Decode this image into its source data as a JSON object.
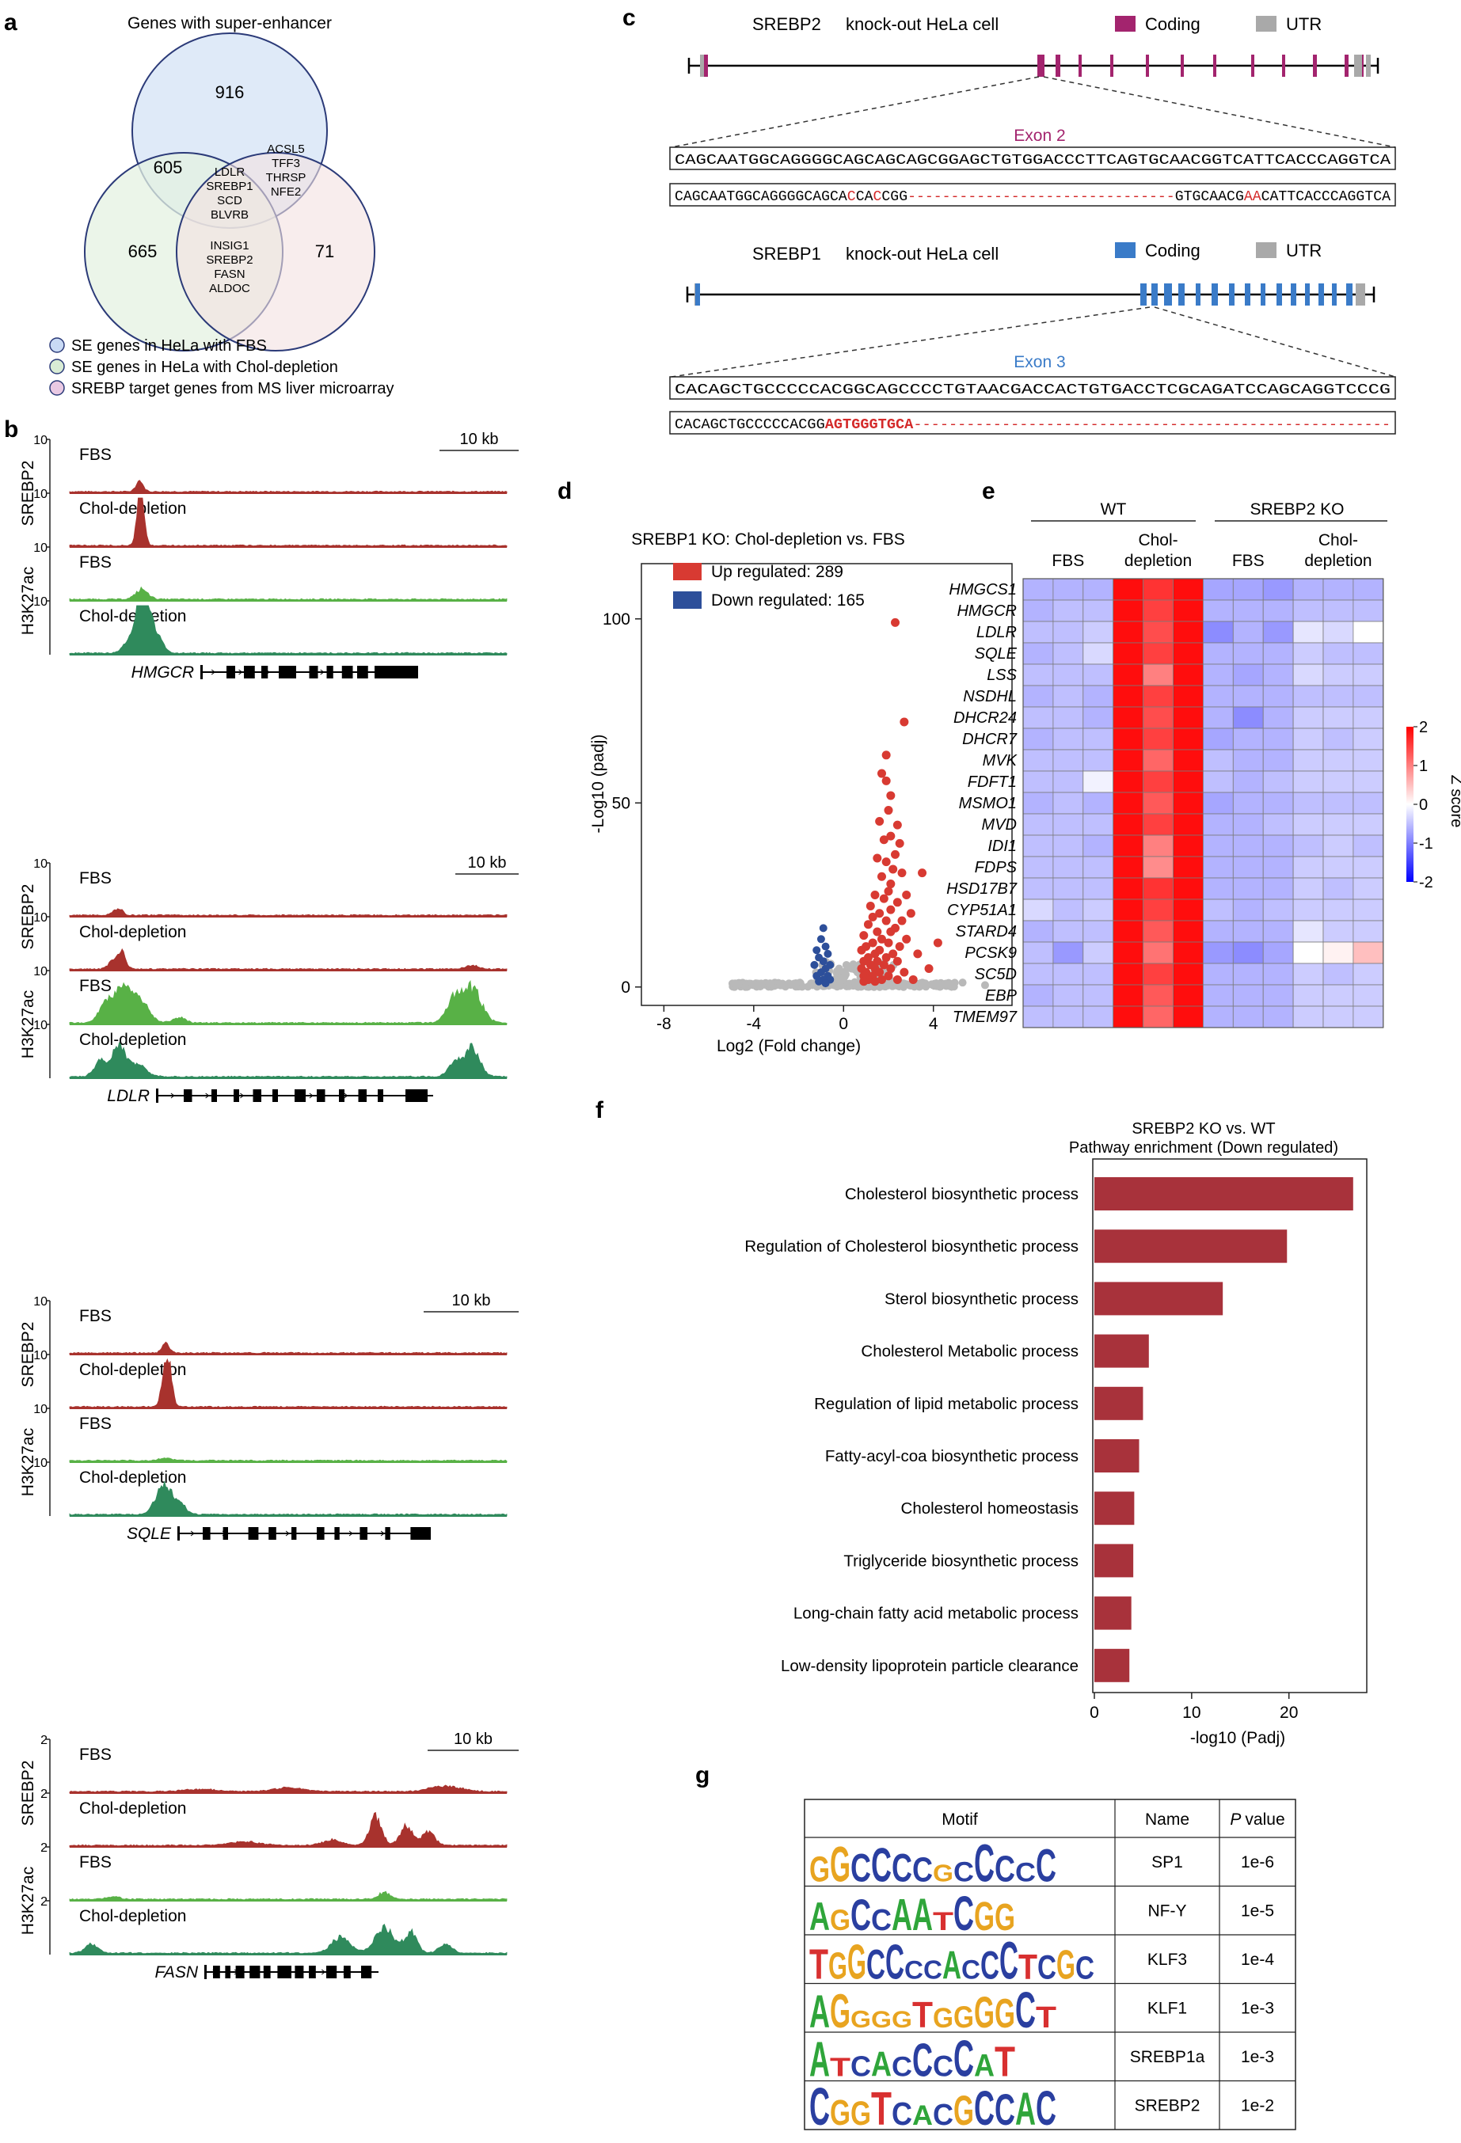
{
  "panel_labels": {
    "a": "a",
    "b": "b",
    "c": "c",
    "d": "d",
    "e": "e",
    "f": "f",
    "g": "g"
  },
  "panel_a": {
    "title": "Genes with super-enhancer",
    "counts": {
      "top": "916",
      "left": "665",
      "right": "71",
      "top_left": "605"
    },
    "center_genes": [
      "LDLR",
      "SREBP1",
      "SCD",
      "BLVRB"
    ],
    "top_right_genes": [
      "ACSL5",
      "TFF3",
      "THRSP",
      "NFE2"
    ],
    "bottom_genes": [
      "INSIG1",
      "SREBP2",
      "FASN",
      "ALDOC"
    ],
    "legend": [
      {
        "label": "SE genes in HeLa with FBS",
        "color": "#c9daf5"
      },
      {
        "label": "SE genes in HeLa with Chol-depletion",
        "color": "#d9ecd5"
      },
      {
        "label": "SREBP target genes from MS liver microarray",
        "color": "#e9c9e3"
      }
    ],
    "colors": {
      "top": "#dce8f7",
      "left": "#e4f2e1",
      "right": "#f4e1e1",
      "outline": "#2b3a78"
    }
  },
  "panel_b": {
    "groups": [
      {
        "gene": "HMGCR",
        "scale": "10 kb",
        "ymax": "10",
        "srebp_label": "SREBP2",
        "h3_label": "H3K27ac"
      },
      {
        "gene": "LDLR",
        "scale": "10 kb",
        "ymax": "10",
        "srebp_label": "SREBP2",
        "h3_label": "H3K27ac"
      },
      {
        "gene": "SQLE",
        "scale": "10 kb",
        "ymax": "10",
        "srebp_label": "SREBP2",
        "h3_label": "H3K27ac"
      },
      {
        "gene": "FASN",
        "scale": "10 kb",
        "ymax": "2",
        "srebp_label": "SREBP2",
        "h3_label": "H3K27ac"
      }
    ],
    "track_labels": [
      "FBS",
      "Chol-depletion",
      "FBS",
      "Chol-depletion"
    ],
    "colors": {
      "srebp": "#a8322d",
      "h3_fbs": "#58b146",
      "h3_chol": "#2f8a5c"
    }
  },
  "panel_c": {
    "srebp2": {
      "title": "SREBP2",
      "subtitle": "knock-out  HeLa cell",
      "coding": "Coding",
      "utr": "UTR",
      "exon": "Exon 2",
      "coding_color": "#a3246e",
      "wt_seq": "CAGCAATGGCAGGGGCAGCAGCAGCGGAGCTGTGGACCCTTCAGTGCAACGGTCATTCACCCAGGTCA",
      "ko_prefix": "CAGCAATGGCAGGGGCAGCA",
      "ko_red1": "C",
      "ko_mid1": "CA",
      "ko_red2": "C",
      "ko_mid2": "CGG",
      "ko_gap": "-------------------------------",
      "ko_mid3": "GTGCAACG",
      "ko_red3": "AA",
      "ko_suffix": "CATTCACCCAGGTCA"
    },
    "srebp1": {
      "title": "SREBP1",
      "subtitle": "knock-out  HeLa cell",
      "coding": "Coding",
      "utr": "UTR",
      "exon": "Exon 3",
      "coding_color": "#3a7bc8",
      "wt_seq": "CACAGCTGCCCCCACGGCAGCCCCTGTAACGACCACTGTGACCTCGCAGATCCAGCAGGTCCCG",
      "ko_prefix": "CACAGCTGCCCCCACGG",
      "ko_red": "AGTGGGTGCA",
      "ko_gap": "------------------------------------------------------"
    },
    "utr_color": "#a9a9a9"
  },
  "chart_data": [
    {
      "type": "scatter",
      "panel": "d",
      "title": "SREBP1 KO: Chol-depletion vs. FBS",
      "xlabel": "Log2 (Fold change)",
      "ylabel": "-Log10 (padj)",
      "xlim": [
        -9,
        7.5
      ],
      "ylim": [
        -5,
        115
      ],
      "xticks": [
        "-8",
        "-4",
        "0",
        "4"
      ],
      "yticks": [
        "0",
        "50",
        "100"
      ],
      "legend": [
        {
          "label": "Up regulated: 289",
          "color": "#d83a32"
        },
        {
          "label": "Down regulated: 165",
          "color": "#2d4f9a"
        }
      ],
      "up_points": [
        [
          2.3,
          99
        ],
        [
          2.7,
          72
        ],
        [
          1.9,
          63
        ],
        [
          1.7,
          58
        ],
        [
          1.9,
          56
        ],
        [
          2.1,
          52
        ],
        [
          2.0,
          48
        ],
        [
          1.6,
          45
        ],
        [
          2.4,
          44
        ],
        [
          2.1,
          41
        ],
        [
          1.8,
          40
        ],
        [
          2.5,
          39
        ],
        [
          2.3,
          36
        ],
        [
          1.5,
          35
        ],
        [
          1.9,
          34
        ],
        [
          2.2,
          32
        ],
        [
          2.6,
          31
        ],
        [
          3.5,
          31
        ],
        [
          1.7,
          30
        ],
        [
          2.1,
          28
        ],
        [
          2.0,
          26
        ],
        [
          1.4,
          25
        ],
        [
          2.8,
          25
        ],
        [
          1.8,
          24
        ],
        [
          2.4,
          23
        ],
        [
          1.2,
          22
        ],
        [
          2.1,
          21
        ],
        [
          1.6,
          20
        ],
        [
          3.0,
          20
        ],
        [
          1.3,
          19
        ],
        [
          1.9,
          18
        ],
        [
          2.6,
          18
        ],
        [
          1.1,
          17
        ],
        [
          2.3,
          16
        ],
        [
          1.5,
          15
        ],
        [
          2.1,
          15
        ],
        [
          0.9,
          14
        ],
        [
          1.7,
          13
        ],
        [
          2.8,
          13
        ],
        [
          1.3,
          12
        ],
        [
          2.0,
          12
        ],
        [
          1.0,
          11
        ],
        [
          2.5,
          11
        ],
        [
          1.6,
          10
        ],
        [
          0.8,
          10
        ],
        [
          2.2,
          9
        ],
        [
          1.4,
          9
        ],
        [
          3.3,
          9
        ],
        [
          1.1,
          8
        ],
        [
          1.9,
          8
        ],
        [
          0.9,
          7
        ],
        [
          1.5,
          7
        ],
        [
          2.4,
          7
        ],
        [
          1.2,
          6
        ],
        [
          1.8,
          6
        ],
        [
          0.8,
          5
        ],
        [
          1.4,
          5
        ],
        [
          2.1,
          5
        ],
        [
          3.8,
          5
        ],
        [
          1.0,
          4
        ],
        [
          1.6,
          4
        ],
        [
          2.7,
          4
        ],
        [
          0.9,
          3
        ],
        [
          1.3,
          3
        ],
        [
          2.0,
          3
        ],
        [
          1.1,
          2
        ],
        [
          1.7,
          2
        ],
        [
          2.4,
          2
        ],
        [
          0.9,
          1.5
        ],
        [
          1.4,
          1.5
        ],
        [
          3.1,
          2
        ],
        [
          4.2,
          12
        ]
      ],
      "down_points": [
        [
          -0.9,
          16
        ],
        [
          -1.0,
          13
        ],
        [
          -0.8,
          11
        ],
        [
          -1.2,
          10
        ],
        [
          -0.7,
          9
        ],
        [
          -1.1,
          8
        ],
        [
          -0.9,
          7
        ],
        [
          -0.6,
          6
        ],
        [
          -1.3,
          6
        ],
        [
          -0.8,
          5
        ],
        [
          -1.0,
          4
        ],
        [
          -0.7,
          3
        ],
        [
          -1.2,
          3
        ],
        [
          -0.9,
          2
        ],
        [
          -0.6,
          2
        ],
        [
          -1.1,
          1.5
        ],
        [
          -0.8,
          1
        ]
      ],
      "ns_range": [
        -5,
        5
      ],
      "ns_extra": [
        [
          6.3,
          0.5
        ],
        [
          5.3,
          1.2
        ],
        [
          -3.9,
          0.4
        ]
      ]
    },
    {
      "type": "heatmap",
      "panel": "e",
      "group_labels": [
        "WT",
        "SREBP2 KO"
      ],
      "condition_labels": [
        "FBS",
        "Chol-\ndepletion",
        "FBS",
        "Chol-\ndepletion"
      ],
      "rows": [
        "HMGCS1",
        "HMGCR",
        "LDLR",
        "SQLE",
        "LSS",
        "NSDHL",
        "DHCR24",
        "DHCR7",
        "MVK",
        "FDFT1",
        "MSMO1",
        "MVD",
        "IDI1",
        "FDPS",
        "HSD17B7",
        "CYP51A1",
        "STARD4",
        "PCSK9",
        "SC5D",
        "EBP",
        "TMEM97"
      ],
      "values": [
        [
          -0.6,
          -0.6,
          -0.6,
          1.9,
          1.6,
          1.9,
          -0.7,
          -0.7,
          -0.8,
          -0.6,
          -0.6,
          -0.6
        ],
        [
          -0.6,
          -0.5,
          -0.5,
          1.9,
          1.5,
          1.9,
          -0.6,
          -0.6,
          -0.6,
          -0.5,
          -0.5,
          -0.5
        ],
        [
          -0.5,
          -0.5,
          -0.4,
          1.9,
          1.4,
          1.9,
          -0.9,
          -0.6,
          -0.8,
          -0.2,
          -0.3,
          0.0
        ],
        [
          -0.6,
          -0.5,
          -0.3,
          1.9,
          1.5,
          1.9,
          -0.6,
          -0.6,
          -0.6,
          -0.4,
          -0.5,
          -0.5
        ],
        [
          -0.5,
          -0.5,
          -0.5,
          1.9,
          1.0,
          1.9,
          -0.6,
          -0.7,
          -0.6,
          -0.3,
          -0.4,
          -0.4
        ],
        [
          -0.6,
          -0.5,
          -0.6,
          1.9,
          1.5,
          1.9,
          -0.6,
          -0.6,
          -0.6,
          -0.5,
          -0.5,
          -0.5
        ],
        [
          -0.5,
          -0.5,
          -0.6,
          1.9,
          1.4,
          1.9,
          -0.6,
          -0.9,
          -0.6,
          -0.4,
          -0.4,
          -0.4
        ],
        [
          -0.6,
          -0.5,
          -0.5,
          1.9,
          1.5,
          1.9,
          -0.7,
          -0.6,
          -0.6,
          -0.4,
          -0.5,
          -0.4
        ],
        [
          -0.5,
          -0.5,
          -0.5,
          1.9,
          1.2,
          1.9,
          -0.5,
          -0.6,
          -0.6,
          -0.4,
          -0.4,
          -0.4
        ],
        [
          -0.5,
          -0.5,
          -0.1,
          1.9,
          1.5,
          1.9,
          -0.5,
          -0.6,
          -0.5,
          -0.4,
          -0.4,
          -0.4
        ],
        [
          -0.6,
          -0.5,
          -0.6,
          1.9,
          1.3,
          1.9,
          -0.7,
          -0.6,
          -0.6,
          -0.5,
          -0.5,
          -0.5
        ],
        [
          -0.5,
          -0.5,
          -0.5,
          1.9,
          1.5,
          1.9,
          -0.6,
          -0.6,
          -0.5,
          -0.4,
          -0.4,
          -0.4
        ],
        [
          -0.5,
          -0.5,
          -0.6,
          1.9,
          1.0,
          1.9,
          -0.6,
          -0.6,
          -0.6,
          -0.5,
          -0.4,
          -0.5
        ],
        [
          -0.5,
          -0.5,
          -0.5,
          1.9,
          0.9,
          1.9,
          -0.6,
          -0.6,
          -0.6,
          -0.4,
          -0.4,
          -0.4
        ],
        [
          -0.5,
          -0.5,
          -0.5,
          1.9,
          1.6,
          1.9,
          -0.6,
          -0.6,
          -0.6,
          -0.4,
          -0.5,
          -0.4
        ],
        [
          -0.3,
          -0.5,
          -0.4,
          1.9,
          1.5,
          1.9,
          -0.5,
          -0.6,
          -0.5,
          -0.4,
          -0.4,
          -0.4
        ],
        [
          -0.6,
          -0.5,
          -0.5,
          1.9,
          1.3,
          1.9,
          -0.6,
          -0.6,
          -0.6,
          -0.2,
          -0.4,
          -0.4
        ],
        [
          -0.5,
          -0.8,
          -0.4,
          1.9,
          1.1,
          1.9,
          -0.8,
          -0.9,
          -0.7,
          0.0,
          0.1,
          0.5
        ],
        [
          -0.5,
          -0.5,
          -0.5,
          1.9,
          1.5,
          1.9,
          -0.6,
          -0.6,
          -0.6,
          -0.4,
          -0.5,
          -0.4
        ],
        [
          -0.6,
          -0.5,
          -0.5,
          1.9,
          1.3,
          1.9,
          -0.6,
          -0.6,
          -0.6,
          -0.4,
          -0.4,
          -0.4
        ],
        [
          -0.5,
          -0.5,
          -0.5,
          1.9,
          1.2,
          1.9,
          -0.6,
          -0.6,
          -0.6,
          -0.4,
          -0.4,
          -0.4
        ]
      ],
      "colorbar": {
        "label": "Z score",
        "ticks": [
          "2",
          "1",
          "0",
          "-1",
          "-2"
        ],
        "range": [
          -2,
          2
        ]
      }
    },
    {
      "type": "bar",
      "panel": "f",
      "orientation": "horizontal",
      "title": "SREBP2 KO vs. WT",
      "subtitle": "Pathway enrichment (Down regulated)",
      "xlabel": "-log10 (Padj)",
      "xlim": [
        0,
        28
      ],
      "xticks": [
        "0",
        "10",
        "20"
      ],
      "color": "#a8323b",
      "categories": [
        "Cholesterol biosynthetic process",
        "Regulation of Cholesterol biosynthetic process",
        "Sterol biosynthetic process",
        "Cholesterol Metabolic process",
        "Regulation of lipid metabolic process",
        "Fatty-acyl-coa biosynthetic process",
        "Cholesterol homeostasis",
        "Triglyceride biosynthetic process",
        "Long-chain fatty acid metabolic process",
        "Low-density lipoprotein particle clearance"
      ],
      "values": [
        26.6,
        19.8,
        13.2,
        5.6,
        5.0,
        4.6,
        4.1,
        4.0,
        3.8,
        3.6
      ]
    },
    {
      "type": "table",
      "panel": "g",
      "headers": [
        "Motif",
        "Name",
        "P value"
      ],
      "rows": [
        {
          "motif": "GGCCCCGCCCCC",
          "name": "SP1",
          "p": "1e-6"
        },
        {
          "motif": "AGCCAATCGG",
          "name": "NF-Y",
          "p": "1e-5"
        },
        {
          "motif": "TGGCCCCACCCTCGC",
          "name": "KLF3",
          "p": "1e-4"
        },
        {
          "motif": "AGGGGTGGGGCT",
          "name": "KLF1",
          "p": "1e-3"
        },
        {
          "motif": "ATCACCCCAT",
          "name": "SREBP1a",
          "p": "1e-3"
        },
        {
          "motif": "CGGTCACGCCAC",
          "name": "SREBP2",
          "p": "1e-2"
        }
      ]
    }
  ]
}
